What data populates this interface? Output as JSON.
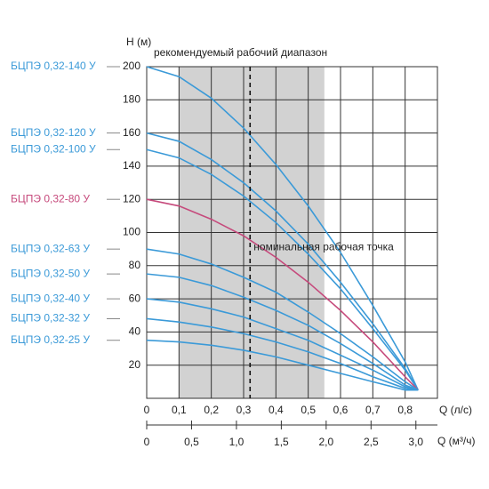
{
  "chart_data": {
    "type": "line",
    "y_label": "H (м)",
    "x_label": "Q (л/с)",
    "x2_label": "Q (м³/ч)",
    "xlim": [
      0,
      0.9
    ],
    "ylim": [
      0,
      200
    ],
    "x2lim": [
      0,
      3.24
    ],
    "xticks": [
      0,
      {
        "value": 0.1,
        "label": "0,1"
      },
      {
        "value": 0.2,
        "label": "0,2"
      },
      {
        "value": 0.3,
        "label": "0,3"
      },
      {
        "value": 0.4,
        "label": "0,4"
      },
      {
        "value": 0.5,
        "label": "0,5"
      },
      {
        "value": 0.6,
        "label": "0,6"
      },
      {
        "value": 0.7,
        "label": "0,7"
      },
      {
        "value": 0.8,
        "label": "0,8"
      }
    ],
    "yticks": [
      20,
      40,
      60,
      80,
      100,
      120,
      140,
      160,
      180,
      200
    ],
    "x2ticks": [
      0,
      {
        "value": 0.5,
        "label": "0,5"
      },
      {
        "value": 1,
        "label": "1,0"
      },
      {
        "value": 1.5,
        "label": "1,5"
      },
      {
        "value": 2,
        "label": "2,0"
      },
      {
        "value": 2.5,
        "label": "2,5"
      },
      {
        "value": 3,
        "label": "3,0"
      }
    ],
    "grid": true,
    "range_band": {
      "from": 0.1,
      "to": 0.55,
      "label": "рекомендуемый рабочий диапазон",
      "color": "#d2d2d2"
    },
    "reference_line": {
      "x": 0.32,
      "label": "номинальная рабочая точка"
    },
    "x": [
      0,
      0.1,
      0.2,
      0.3,
      0.4,
      0.5,
      0.6,
      0.7,
      0.8,
      0.84
    ],
    "series": [
      {
        "name": "БЦПЭ 0,32-140 У",
        "color": "#3b9ad8",
        "values": [
          200,
          194,
          181,
          163,
          141,
          116,
          88,
          56,
          22,
          5
        ]
      },
      {
        "name": "БЦПЭ 0,32-120 У",
        "color": "#3b9ad8",
        "values": [
          160,
          155,
          144,
          130,
          113,
          93,
          70,
          45,
          18,
          5
        ]
      },
      {
        "name": "БЦПЭ 0,32-100 У",
        "color": "#3b9ad8",
        "values": [
          150,
          145,
          135,
          122,
          106,
          87,
          66,
          42,
          17,
          5
        ]
      },
      {
        "name": "БЦПЭ 0,32-80 У",
        "color": "#c64a7c",
        "values": [
          120,
          116,
          108,
          98,
          85,
          70,
          53,
          34,
          13,
          5
        ]
      },
      {
        "name": "БЦПЭ 0,32-63 У",
        "color": "#3b9ad8",
        "values": [
          90,
          87,
          81,
          73,
          64,
          52,
          39,
          25,
          10,
          5
        ]
      },
      {
        "name": "БЦПЭ 0,32-50 У",
        "color": "#3b9ad8",
        "values": [
          75,
          73,
          68,
          61,
          53,
          44,
          33,
          21,
          8,
          5
        ]
      },
      {
        "name": "БЦПЭ 0,32-40 У",
        "color": "#3b9ad8",
        "values": [
          60,
          58,
          54,
          49,
          42,
          35,
          26,
          17,
          7,
          5
        ]
      },
      {
        "name": "БЦПЭ 0,32-32 У",
        "color": "#3b9ad8",
        "values": [
          48,
          46,
          43,
          39,
          34,
          28,
          21,
          13,
          6,
          5
        ]
      },
      {
        "name": "БЦПЭ 0,32-25 У",
        "color": "#3b9ad8",
        "values": [
          35,
          34,
          32,
          29,
          25,
          20,
          15,
          10,
          5,
          5
        ]
      }
    ]
  }
}
